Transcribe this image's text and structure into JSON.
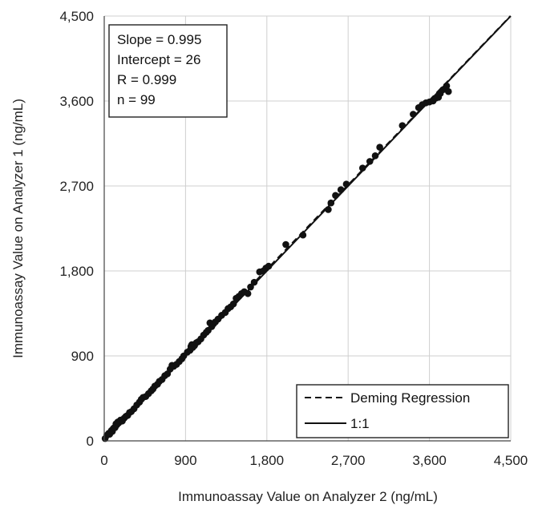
{
  "chart_data": {
    "type": "scatter",
    "xlabel": "Immunoassay  Value on Analyzer 2 (ng/mL)",
    "ylabel": "Immunoassay  Value on Analyzer 1 (ng/mL)",
    "xlim": [
      0,
      4500
    ],
    "ylim": [
      0,
      4500
    ],
    "x_ticks": [
      "0",
      "900",
      "1,800",
      "2,700",
      "3,600",
      "4,500"
    ],
    "y_ticks": [
      "0",
      "900",
      "1,800",
      "2,700",
      "3,600",
      "4,500"
    ],
    "x_tick_values": [
      0,
      900,
      1800,
      2700,
      3600,
      4500
    ],
    "y_tick_values": [
      0,
      900,
      1800,
      2700,
      3600,
      4500
    ],
    "grid": true,
    "stats": [
      "Slope = 0.995",
      "Intercept  = 26",
      "R = 0.999",
      "n = 99"
    ],
    "legend": {
      "placement": "bottom-right",
      "entries": [
        {
          "label": "Deming Regression",
          "style": "dashed"
        },
        {
          "label": "1:1",
          "style": "solid"
        }
      ]
    },
    "lines": [
      {
        "name": "Deming Regression",
        "slope": 0.995,
        "intercept": 26,
        "style": "dashed"
      },
      {
        "name": "1:1",
        "slope": 1,
        "intercept": 0,
        "style": "solid"
      }
    ],
    "points": [
      [
        10,
        25
      ],
      [
        30,
        60
      ],
      [
        50,
        80
      ],
      [
        60,
        70
      ],
      [
        80,
        110
      ],
      [
        90,
        100
      ],
      [
        100,
        130
      ],
      [
        110,
        140
      ],
      [
        120,
        140
      ],
      [
        130,
        180
      ],
      [
        140,
        170
      ],
      [
        150,
        200
      ],
      [
        160,
        190
      ],
      [
        180,
        220
      ],
      [
        200,
        210
      ],
      [
        220,
        240
      ],
      [
        240,
        260
      ],
      [
        260,
        270
      ],
      [
        280,
        300
      ],
      [
        300,
        310
      ],
      [
        330,
        340
      ],
      [
        360,
        380
      ],
      [
        390,
        410
      ],
      [
        410,
        440
      ],
      [
        430,
        460
      ],
      [
        460,
        470
      ],
      [
        490,
        500
      ],
      [
        520,
        530
      ],
      [
        540,
        550
      ],
      [
        560,
        580
      ],
      [
        590,
        600
      ],
      [
        610,
        630
      ],
      [
        640,
        650
      ],
      [
        670,
        690
      ],
      [
        700,
        710
      ],
      [
        730,
        760
      ],
      [
        750,
        800
      ],
      [
        770,
        790
      ],
      [
        800,
        810
      ],
      [
        830,
        840
      ],
      [
        860,
        870
      ],
      [
        880,
        900
      ],
      [
        920,
        940
      ],
      [
        950,
        960
      ],
      [
        960,
        1000
      ],
      [
        970,
        1020
      ],
      [
        980,
        990
      ],
      [
        1000,
        1010
      ],
      [
        1020,
        1040
      ],
      [
        1040,
        1050
      ],
      [
        1070,
        1080
      ],
      [
        1100,
        1120
      ],
      [
        1130,
        1150
      ],
      [
        1150,
        1170
      ],
      [
        1170,
        1250
      ],
      [
        1190,
        1210
      ],
      [
        1210,
        1240
      ],
      [
        1230,
        1260
      ],
      [
        1260,
        1290
      ],
      [
        1300,
        1330
      ],
      [
        1340,
        1360
      ],
      [
        1370,
        1400
      ],
      [
        1400,
        1420
      ],
      [
        1430,
        1450
      ],
      [
        1460,
        1510
      ],
      [
        1490,
        1530
      ],
      [
        1520,
        1560
      ],
      [
        1550,
        1580
      ],
      [
        1590,
        1560
      ],
      [
        1620,
        1630
      ],
      [
        1660,
        1680
      ],
      [
        1720,
        1790
      ],
      [
        1760,
        1800
      ],
      [
        1790,
        1830
      ],
      [
        1820,
        1850
      ],
      [
        2010,
        2080
      ],
      [
        2200,
        2180
      ],
      [
        2480,
        2450
      ],
      [
        2510,
        2520
      ],
      [
        2560,
        2600
      ],
      [
        2620,
        2660
      ],
      [
        2680,
        2720
      ],
      [
        2860,
        2890
      ],
      [
        2940,
        2960
      ],
      [
        3000,
        3020
      ],
      [
        3050,
        3110
      ],
      [
        3300,
        3340
      ],
      [
        3420,
        3460
      ],
      [
        3480,
        3530
      ],
      [
        3520,
        3560
      ],
      [
        3560,
        3580
      ],
      [
        3600,
        3590
      ],
      [
        3640,
        3600
      ],
      [
        3670,
        3630
      ],
      [
        3700,
        3640
      ],
      [
        3720,
        3680
      ],
      [
        3750,
        3720
      ],
      [
        3790,
        3760
      ],
      [
        3810,
        3700
      ]
    ]
  }
}
